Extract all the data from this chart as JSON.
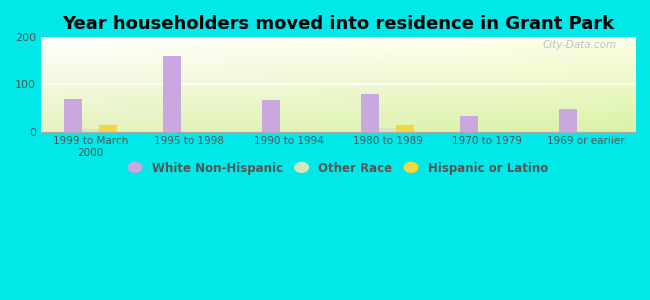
{
  "title": "Year householders moved into residence in Grant Park",
  "categories": [
    "1999 to March\n2000",
    "1995 to 1998",
    "1990 to 1994",
    "1980 to 1989",
    "1970 to 1979",
    "1969 or earlier"
  ],
  "white_non_hispanic": [
    70,
    160,
    68,
    80,
    32,
    48
  ],
  "other_race": [
    5,
    0,
    0,
    7,
    0,
    0
  ],
  "hispanic_or_latino": [
    13,
    0,
    0,
    13,
    0,
    0
  ],
  "bar_color_white": "#c9a8e0",
  "bar_color_other": "#d4e8c0",
  "bar_color_hispanic": "#f0d840",
  "ylim": [
    0,
    200
  ],
  "yticks": [
    0,
    100,
    200
  ],
  "background_outer": "#00e8e8",
  "watermark": "City-Data.com",
  "legend_labels": [
    "White Non-Hispanic",
    "Other Race",
    "Hispanic or Latino"
  ],
  "bar_width": 0.18,
  "title_fontsize": 13
}
